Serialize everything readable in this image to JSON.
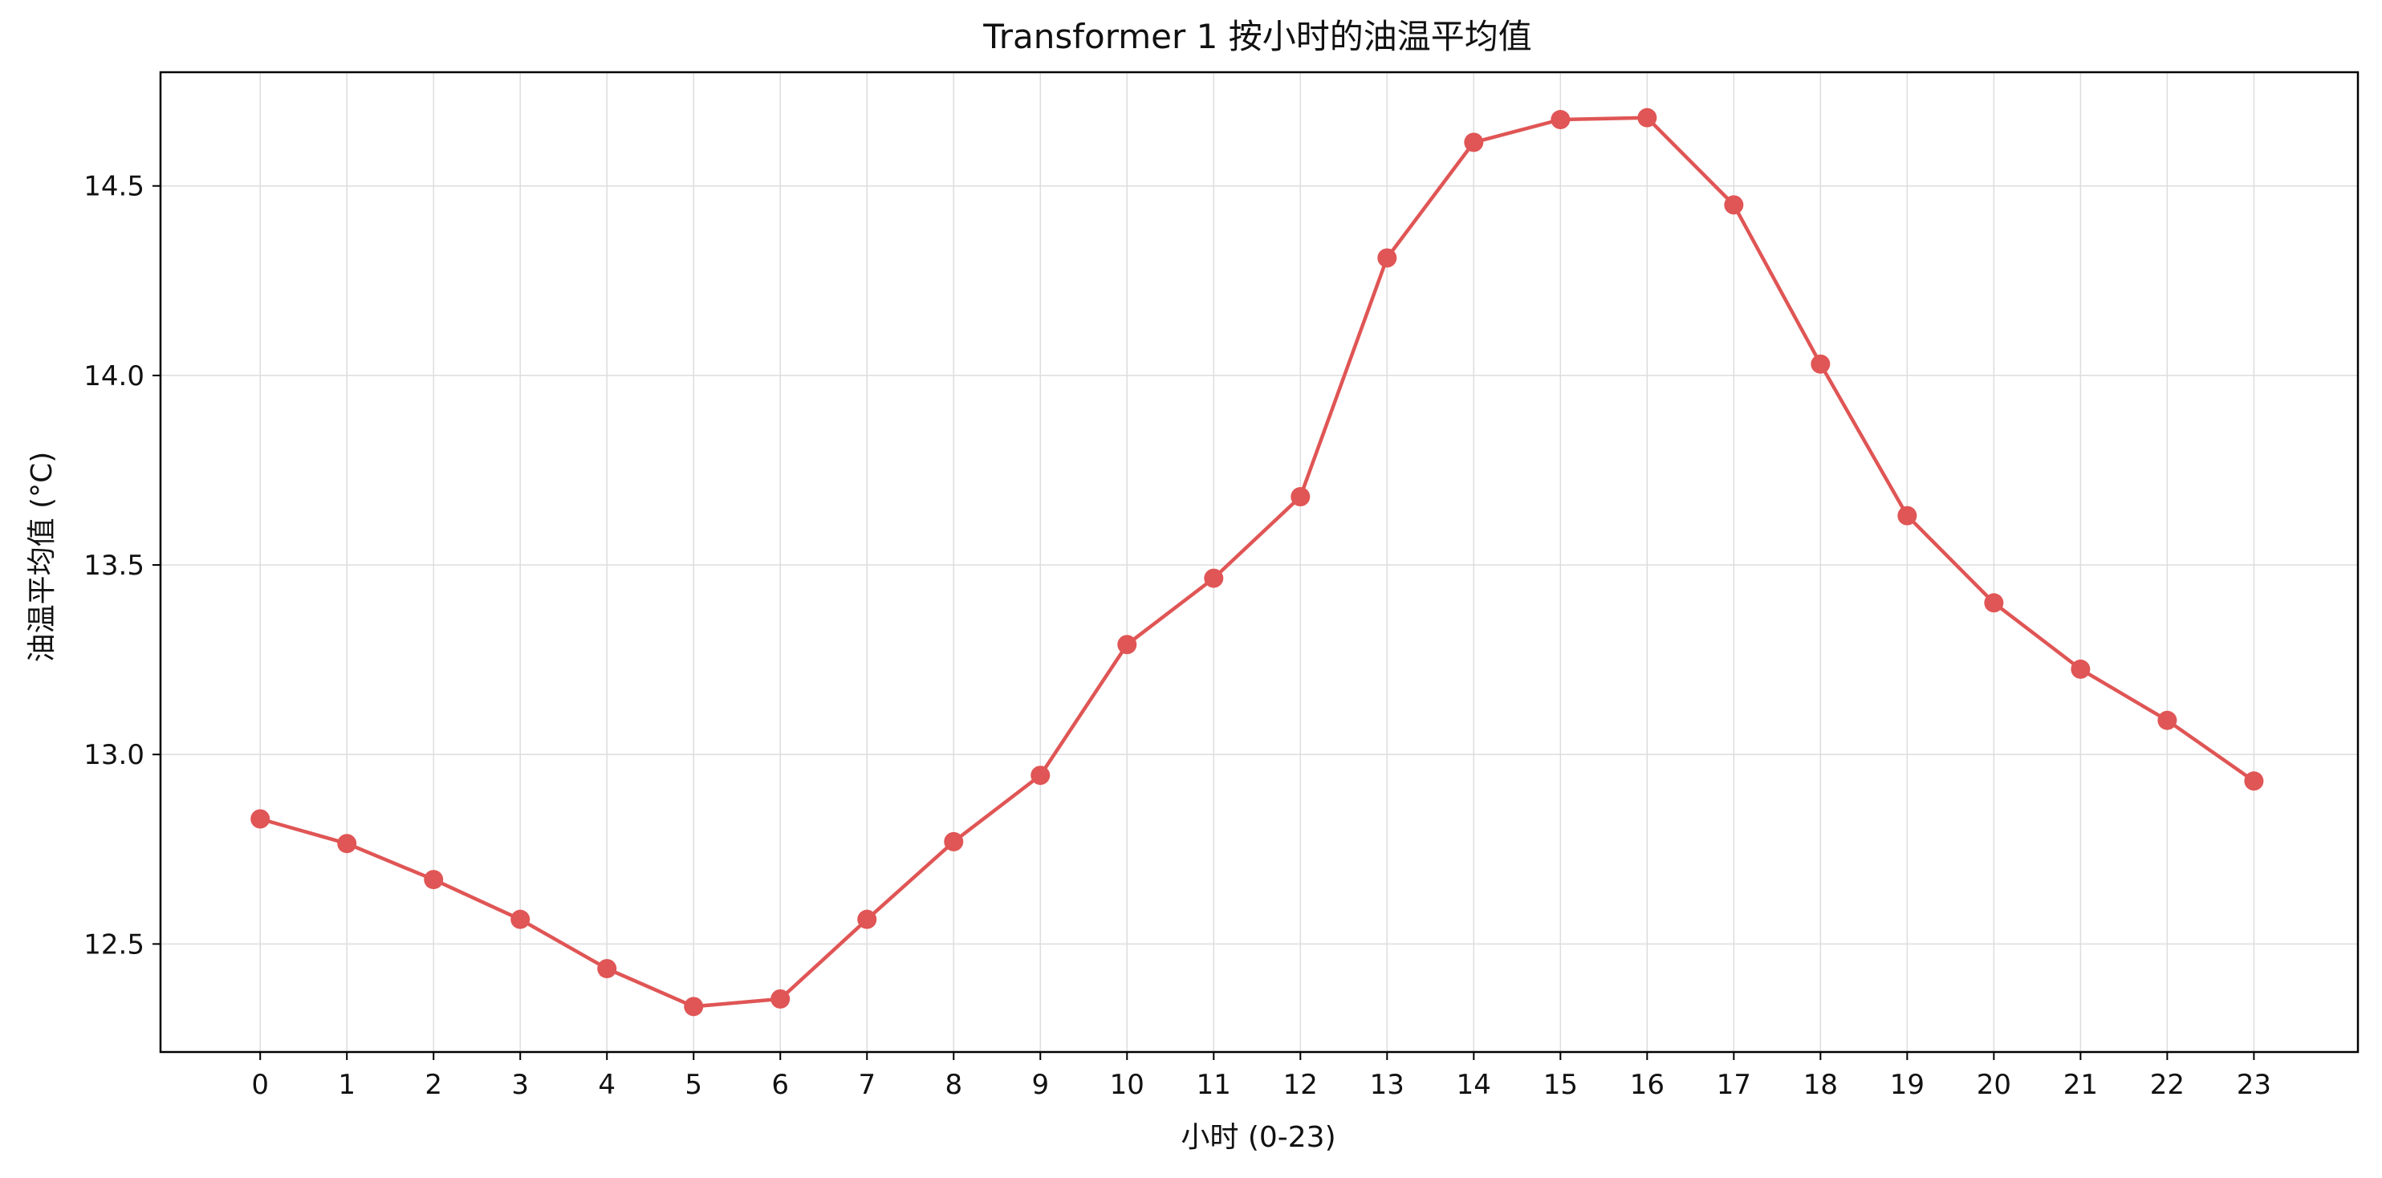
{
  "chart_data": {
    "type": "line",
    "title": "Transformer 1 按小时的油温平均值",
    "xlabel": "小时 (0-23)",
    "ylabel": "油温平均值 (°C)",
    "x": [
      0,
      1,
      2,
      3,
      4,
      5,
      6,
      7,
      8,
      9,
      10,
      11,
      12,
      13,
      14,
      15,
      16,
      17,
      18,
      19,
      20,
      21,
      22,
      23
    ],
    "series": [
      {
        "values": [
          12.83,
          12.765,
          12.67,
          12.565,
          12.435,
          12.335,
          12.355,
          12.565,
          12.77,
          12.945,
          13.29,
          13.465,
          13.68,
          14.31,
          14.615,
          14.675,
          14.68,
          14.45,
          14.03,
          13.63,
          13.4,
          13.225,
          13.09,
          12.93
        ]
      }
    ],
    "xlim": [
      -1.15,
      24.2
    ],
    "ylim": [
      12.215,
      14.8
    ],
    "yticks": [
      12.5,
      13.0,
      13.5,
      14.0,
      14.5
    ],
    "ytick_labels": [
      "12.5",
      "13.0",
      "13.5",
      "14.0",
      "14.5"
    ],
    "xtick_labels": [
      "0",
      "1",
      "2",
      "3",
      "4",
      "5",
      "6",
      "7",
      "8",
      "9",
      "10",
      "11",
      "12",
      "13",
      "14",
      "15",
      "16",
      "17",
      "18",
      "19",
      "20",
      "21",
      "22",
      "23"
    ],
    "grid": true,
    "line_color": "#e05555",
    "grid_color": "#dddddd"
  }
}
